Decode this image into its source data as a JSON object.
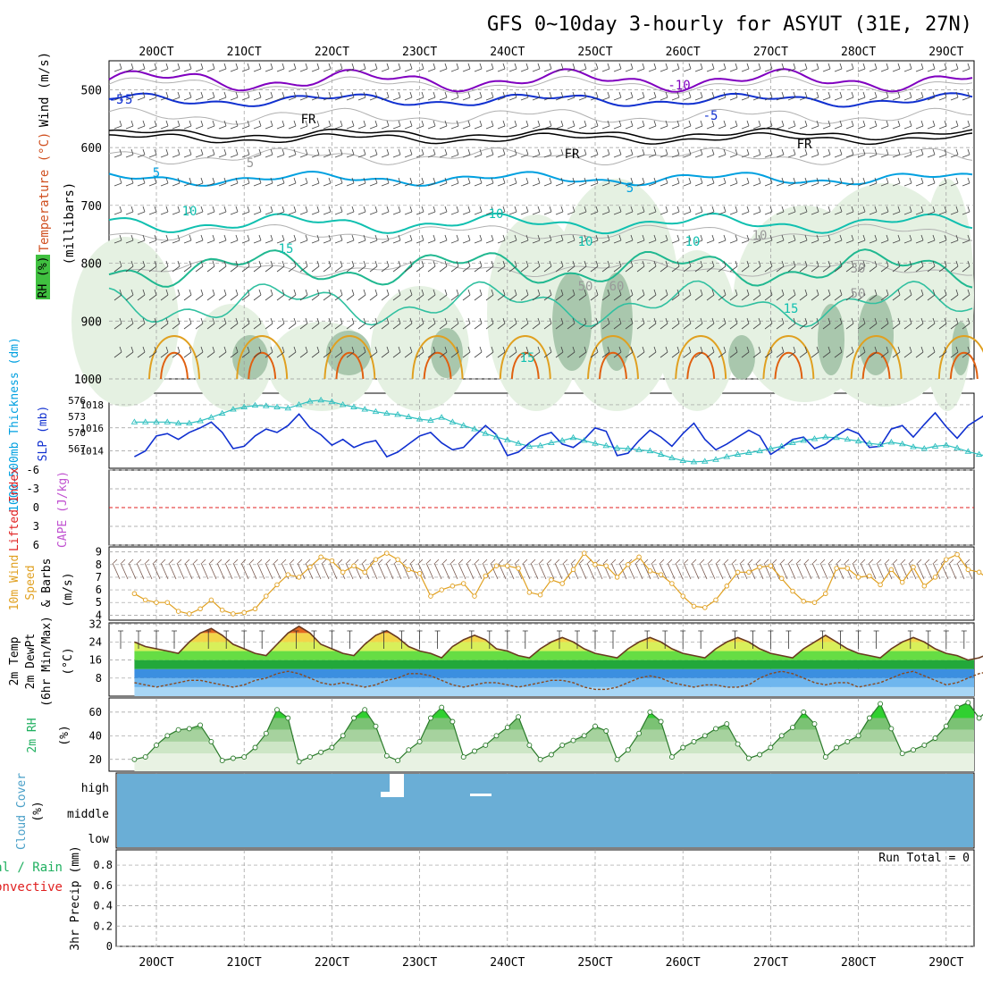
{
  "title": "GFS 0~10day 3-hourly for ASYUT (31E, 27N)",
  "dates": [
    "20OCT",
    "21OCT",
    "22OCT",
    "23OCT",
    "24OCT",
    "25OCT",
    "26OCT",
    "27OCT",
    "28OCT",
    "29OCT"
  ],
  "colors": {
    "purple": "#8000c0",
    "blue": "#1030d0",
    "lightblue": "#00a0e0",
    "teal": "#10c0b0",
    "green": "#20b060",
    "orange": "#e0a020",
    "darkorange": "#e06010",
    "cyan": "#30c0c0",
    "sky": "#6aaed6",
    "red": "#e02020",
    "rhgreen": "#40c040"
  },
  "panels": {
    "upper": {
      "label_wind": "Wind (m/s)",
      "label_temp": "Temperature (°C)",
      "label_rh": "RH (%)",
      "label_pressure": "(millibars)",
      "y_ticks": [
        "500",
        "600",
        "700",
        "800",
        "900",
        "1000"
      ],
      "contour_labels": [
        "-10",
        "-5",
        "-5",
        "-5",
        "FR",
        "FR",
        "FR",
        "5",
        "5",
        "5",
        "10",
        "10",
        "10",
        "15",
        "15",
        "15",
        "10",
        "10",
        "30",
        "50",
        "50",
        "60"
      ]
    },
    "slp": {
      "label_slp": "SLP (mb)",
      "label_thick": "1000-500mb Thickness (dm)",
      "left_ticks": [
        "576",
        "573",
        "570",
        "567"
      ],
      "right_ticks": [
        "1018",
        "1016",
        "1014"
      ]
    },
    "li": {
      "label_li": "Lifted Index",
      "label_cape": "CAPE (J/kg)",
      "ticks": [
        "-6",
        "-3",
        "0",
        "3",
        "6"
      ]
    },
    "wind10": {
      "label_a": "10m Wind",
      "label_b": "Speed",
      "label_c": "& Barbs",
      "unit": "(m/s)",
      "ticks": [
        "9",
        "8",
        "7",
        "6",
        "5",
        "4"
      ]
    },
    "temp2m": {
      "label_a": "2m Temp",
      "label_b": "2m DewPt",
      "label_c": "(6hr Min/Max)",
      "unit": "(°C)",
      "ticks": [
        "32",
        "24",
        "16",
        "8"
      ]
    },
    "rh2m": {
      "label": "2m RH",
      "unit": "(%)",
      "ticks": [
        "60",
        "40",
        "20"
      ]
    },
    "cloud": {
      "label": "Cloud Cover",
      "unit": "(%)",
      "ticks": [
        "high",
        "middle",
        "low"
      ]
    },
    "precip": {
      "label_a": "Total / Rain",
      "label_b": "Convective",
      "label_c": "3hr Precip (mm)",
      "run_total": "Run Total = 0",
      "ticks": [
        "0.8",
        "0.6",
        "0.4",
        "0.2",
        "0"
      ]
    }
  },
  "chart_data": [
    {
      "type": "line",
      "title": "SLP (mb) and 1000-500mb Thickness (dm)",
      "x": [
        "19OCT18",
        "19OCT21",
        "20OCT00",
        "20OCT03",
        "20OCT06",
        "20OCT09",
        "20OCT12",
        "20OCT15",
        "20OCT18",
        "20OCT21",
        "21OCT00",
        "21OCT03",
        "21OCT06",
        "21OCT09",
        "21OCT12",
        "21OCT15",
        "21OCT18",
        "21OCT21",
        "22OCT00",
        "22OCT03",
        "22OCT06",
        "22OCT09",
        "22OCT12",
        "22OCT15",
        "22OCT18",
        "22OCT21",
        "23OCT00",
        "23OCT03",
        "23OCT06",
        "23OCT09",
        "23OCT12",
        "23OCT15",
        "23OCT18",
        "23OCT21",
        "24OCT00",
        "24OCT03",
        "24OCT06",
        "24OCT09",
        "24OCT12",
        "24OCT15",
        "24OCT18",
        "24OCT21",
        "25OCT00",
        "25OCT03",
        "25OCT06",
        "25OCT09",
        "25OCT12",
        "25OCT15",
        "25OCT18",
        "25OCT21",
        "26OCT00",
        "26OCT03",
        "26OCT06",
        "26OCT09",
        "26OCT12",
        "26OCT15",
        "26OCT18",
        "26OCT21",
        "27OCT00",
        "27OCT03",
        "27OCT06",
        "27OCT09",
        "27OCT12",
        "27OCT15",
        "27OCT18",
        "27OCT21",
        "28OCT00",
        "28OCT03",
        "28OCT06",
        "28OCT09",
        "28OCT12",
        "28OCT15",
        "28OCT18",
        "28OCT21",
        "29OCT00",
        "29OCT03",
        "29OCT06",
        "29OCT09",
        "29OCT12"
      ],
      "series": [
        {
          "name": "SLP (mb)",
          "axis": "right",
          "values": [
            1013.5,
            1014.0,
            1015.3,
            1015.5,
            1015.0,
            1015.6,
            1016.0,
            1016.5,
            1015.6,
            1014.2,
            1014.4,
            1015.3,
            1015.9,
            1015.6,
            1016.2,
            1017.2,
            1016.0,
            1015.4,
            1014.5,
            1015.0,
            1014.3,
            1014.7,
            1014.9,
            1013.5,
            1013.9,
            1014.6,
            1015.3,
            1015.6,
            1014.7,
            1014.1,
            1014.3,
            1015.3,
            1016.2,
            1015.4,
            1013.6,
            1013.9,
            1014.7,
            1015.3,
            1015.6,
            1014.6,
            1014.3,
            1015.0,
            1016.0,
            1015.7,
            1013.6,
            1013.8,
            1014.9,
            1015.8,
            1015.2,
            1014.4,
            1015.5,
            1016.4,
            1015.0,
            1014.1,
            1014.6,
            1015.2,
            1015.8,
            1015.3,
            1013.7,
            1014.3,
            1015.0,
            1015.2,
            1014.2,
            1014.6,
            1015.3,
            1015.9,
            1015.5,
            1014.3,
            1014.4,
            1015.9,
            1016.2,
            1015.2,
            1016.3,
            1017.3,
            1016.1,
            1015.1,
            1016.2,
            1016.8,
            1017.4
          ]
        },
        {
          "name": "1000-500mb Thickness (dm)",
          "axis": "left",
          "values": [
            573.0,
            573.0,
            573.0,
            573.0,
            572.8,
            572.8,
            573.2,
            573.8,
            574.5,
            575.2,
            575.6,
            575.9,
            575.8,
            575.6,
            575.4,
            576.0,
            576.6,
            576.8,
            576.5,
            576.0,
            575.6,
            575.2,
            574.8,
            574.5,
            574.3,
            573.9,
            573.5,
            573.3,
            573.8,
            573.0,
            572.4,
            571.8,
            571.0,
            570.4,
            569.9,
            569.3,
            568.8,
            568.9,
            569.4,
            569.8,
            570.3,
            569.8,
            569.3,
            568.9,
            568.5,
            568.4,
            568.2,
            568.0,
            567.4,
            566.8,
            566.3,
            566.1,
            566.2,
            566.5,
            567.0,
            567.4,
            567.7,
            568.0,
            568.4,
            568.8,
            569.4,
            569.8,
            570.1,
            570.4,
            570.3,
            570.0,
            569.7,
            569.3,
            569.1,
            569.5,
            569.2,
            568.7,
            568.4,
            568.8,
            569.0,
            568.5,
            567.9,
            567.4,
            567.0
          ]
        }
      ],
      "ylim_left": [
        565,
        578
      ],
      "ylim_right": [
        1012.5,
        1019.0
      ]
    },
    {
      "type": "line",
      "title": "Lifted Index / CAPE",
      "series": [
        {
          "name": "Lifted Index",
          "values": [
            0,
            0,
            0,
            0,
            0,
            0,
            0,
            0,
            0,
            0
          ]
        }
      ],
      "ylim": [
        6,
        -6
      ]
    },
    {
      "type": "line",
      "title": "10m Wind Speed (m/s)",
      "x": [
        "19OCT18",
        "19OCT21",
        "20OCT00",
        "20OCT03",
        "20OCT06",
        "20OCT09",
        "20OCT12",
        "20OCT15",
        "20OCT18",
        "20OCT21",
        "21OCT00",
        "21OCT03",
        "21OCT06",
        "21OCT09",
        "21OCT12",
        "21OCT15",
        "21OCT18",
        "21OCT21",
        "22OCT00",
        "22OCT03",
        "22OCT06",
        "22OCT09",
        "22OCT12",
        "22OCT15",
        "22OCT18",
        "22OCT21",
        "23OCT00",
        "23OCT03",
        "23OCT06",
        "23OCT09",
        "23OCT12",
        "23OCT15",
        "23OCT18",
        "23OCT21",
        "24OCT00",
        "24OCT03",
        "24OCT06",
        "24OCT09",
        "24OCT12",
        "24OCT15",
        "24OCT18",
        "24OCT21",
        "25OCT00",
        "25OCT03",
        "25OCT06",
        "25OCT09",
        "25OCT12",
        "25OCT15",
        "25OCT18",
        "25OCT21",
        "26OCT00",
        "26OCT03",
        "26OCT06",
        "26OCT09",
        "26OCT12",
        "26OCT15",
        "26OCT18",
        "26OCT21",
        "27OCT00",
        "27OCT03",
        "27OCT06",
        "27OCT09",
        "27OCT12",
        "27OCT15",
        "27OCT18",
        "27OCT21",
        "28OCT00",
        "28OCT03",
        "28OCT06",
        "28OCT09",
        "28OCT12",
        "28OCT15",
        "28OCT18",
        "28OCT21",
        "29OCT00",
        "29OCT03",
        "29OCT06",
        "29OCT09",
        "29OCT12"
      ],
      "series": [
        {
          "name": "Speed",
          "values": [
            5.7,
            5.2,
            5.0,
            5.0,
            4.3,
            4.1,
            4.5,
            5.2,
            4.4,
            4.1,
            4.2,
            4.5,
            5.5,
            6.4,
            7.2,
            7.0,
            7.8,
            8.6,
            8.3,
            7.4,
            7.9,
            7.4,
            8.4,
            8.9,
            8.4,
            7.6,
            7.3,
            5.5,
            6.0,
            6.3,
            6.5,
            5.5,
            7.1,
            7.9,
            7.9,
            7.7,
            5.8,
            5.6,
            6.8,
            6.5,
            7.6,
            8.9,
            8.0,
            7.9,
            7.0,
            8.0,
            8.6,
            7.5,
            7.2,
            6.5,
            5.5,
            4.7,
            4.6,
            5.2,
            6.3,
            7.4,
            7.4,
            7.8,
            7.9,
            6.9,
            5.9,
            5.1,
            5.0,
            5.7,
            7.7,
            7.7,
            7.0,
            7.1,
            6.4,
            7.6,
            6.6,
            7.8,
            6.3,
            7.0,
            8.4,
            8.8,
            7.6,
            7.4,
            6.8
          ]
        }
      ],
      "ylim": [
        3.6,
        9.4
      ]
    },
    {
      "type": "area",
      "title": "2m Temp / 2m DewPt (°C)",
      "x": [
        "19OCT18",
        "19OCT21",
        "20OCT00",
        "20OCT03",
        "20OCT06",
        "20OCT09",
        "20OCT12",
        "20OCT15",
        "20OCT18",
        "20OCT21",
        "21OCT00",
        "21OCT03",
        "21OCT06",
        "21OCT09",
        "21OCT12",
        "21OCT15",
        "21OCT18",
        "21OCT21",
        "22OCT00",
        "22OCT03",
        "22OCT06",
        "22OCT09",
        "22OCT12",
        "22OCT15",
        "22OCT18",
        "22OCT21",
        "23OCT00",
        "23OCT03",
        "23OCT06",
        "23OCT09",
        "23OCT12",
        "23OCT15",
        "23OCT18",
        "23OCT21",
        "24OCT00",
        "24OCT03",
        "24OCT06",
        "24OCT09",
        "24OCT12",
        "24OCT15",
        "24OCT18",
        "24OCT21",
        "25OCT00",
        "25OCT03",
        "25OCT06",
        "25OCT09",
        "25OCT12",
        "25OCT15",
        "25OCT18",
        "25OCT21",
        "26OCT00",
        "26OCT03",
        "26OCT06",
        "26OCT09",
        "26OCT12",
        "26OCT15",
        "26OCT18",
        "26OCT21",
        "27OCT00",
        "27OCT03",
        "27OCT06",
        "27OCT09",
        "27OCT12",
        "27OCT15",
        "27OCT18",
        "27OCT21",
        "28OCT00",
        "28OCT03",
        "28OCT06",
        "28OCT09",
        "28OCT12",
        "28OCT15",
        "28OCT18",
        "28OCT21",
        "29OCT00",
        "29OCT03",
        "29OCT06",
        "29OCT09",
        "29OCT12"
      ],
      "series": [
        {
          "name": "2m Temp",
          "values": [
            24,
            22,
            21,
            20,
            19,
            24,
            28,
            30,
            27,
            23,
            21,
            19,
            18,
            23,
            28,
            31,
            28,
            23,
            21,
            19,
            18,
            23,
            27,
            29,
            26,
            22,
            20,
            19,
            17,
            22,
            25,
            27,
            25,
            21,
            20,
            18,
            17,
            21,
            24,
            26,
            24,
            21,
            19,
            18,
            17,
            21,
            24,
            26,
            24,
            21,
            19,
            18,
            17,
            21,
            24,
            26,
            24,
            21,
            19,
            18,
            17,
            21,
            24,
            27,
            24,
            21,
            19,
            18,
            17,
            21,
            24,
            26,
            24,
            21,
            19,
            18,
            16,
            17,
            19
          ]
        },
        {
          "name": "2m DewPt",
          "values": [
            6,
            5,
            4,
            5,
            6,
            7,
            7,
            6,
            5,
            4,
            5,
            7,
            8,
            10,
            11,
            10,
            8,
            6,
            5,
            6,
            5,
            4,
            5,
            7,
            8,
            10,
            10,
            9,
            7,
            5,
            4,
            5,
            6,
            6,
            5,
            4,
            5,
            6,
            7,
            7,
            6,
            4,
            3,
            3,
            4,
            6,
            8,
            9,
            8,
            6,
            5,
            4,
            5,
            5,
            4,
            4,
            5,
            8,
            10,
            11,
            10,
            8,
            6,
            5,
            6,
            6,
            4,
            5,
            6,
            8,
            10,
            11,
            9,
            7,
            5,
            6,
            8,
            10,
            11
          ]
        }
      ],
      "ylim": [
        0,
        32
      ]
    },
    {
      "type": "area",
      "title": "2m RH (%)",
      "x": [
        "19OCT18",
        "19OCT21",
        "20OCT00",
        "20OCT03",
        "20OCT06",
        "20OCT09",
        "20OCT12",
        "20OCT15",
        "20OCT18",
        "20OCT21",
        "21OCT00",
        "21OCT03",
        "21OCT06",
        "21OCT09",
        "21OCT12",
        "21OCT15",
        "21OCT18",
        "21OCT21",
        "22OCT00",
        "22OCT03",
        "22OCT06",
        "22OCT09",
        "22OCT12",
        "22OCT15",
        "22OCT18",
        "22OCT21",
        "23OCT00",
        "23OCT03",
        "23OCT06",
        "23OCT09",
        "23OCT12",
        "23OCT15",
        "23OCT18",
        "23OCT21",
        "24OCT00",
        "24OCT03",
        "24OCT06",
        "24OCT09",
        "24OCT12",
        "24OCT15",
        "24OCT18",
        "24OCT21",
        "25OCT00",
        "25OCT03",
        "25OCT06",
        "25OCT09",
        "25OCT12",
        "25OCT15",
        "25OCT18",
        "25OCT21",
        "26OCT00",
        "26OCT03",
        "26OCT06",
        "26OCT09",
        "26OCT12",
        "26OCT15",
        "26OCT18",
        "26OCT21",
        "27OCT00",
        "27OCT03",
        "27OCT06",
        "27OCT09",
        "27OCT12",
        "27OCT15",
        "27OCT18",
        "27OCT21",
        "28OCT00",
        "28OCT03",
        "28OCT06",
        "28OCT09",
        "28OCT12",
        "28OCT15",
        "28OCT18",
        "28OCT21",
        "29OCT00",
        "29OCT03",
        "29OCT06",
        "29OCT09",
        "29OCT12"
      ],
      "series": [
        {
          "name": "2m RH",
          "values": [
            20,
            22,
            32,
            40,
            45,
            46,
            49,
            35,
            19,
            21,
            22,
            30,
            42,
            62,
            55,
            18,
            22,
            26,
            30,
            40,
            55,
            62,
            48,
            23,
            19,
            28,
            35,
            55,
            64,
            52,
            22,
            27,
            32,
            40,
            47,
            56,
            32,
            20,
            24,
            32,
            36,
            40,
            48,
            44,
            20,
            28,
            42,
            60,
            52,
            22,
            30,
            35,
            40,
            46,
            50,
            33,
            21,
            24,
            30,
            40,
            47,
            60,
            50,
            22,
            30,
            35,
            40,
            55,
            67,
            46,
            25,
            28,
            32,
            38,
            48,
            64,
            68,
            55,
            63
          ]
        }
      ],
      "ylim": [
        10,
        70
      ]
    },
    {
      "type": "area",
      "title": "Cloud Cover (%)",
      "series": [
        {
          "name": "high",
          "values": [
            100,
            100,
            100,
            100,
            100,
            100,
            100,
            100,
            100,
            100
          ]
        },
        {
          "name": "middle",
          "values": [
            100,
            100,
            100,
            100,
            100,
            100,
            100,
            100,
            100,
            100
          ]
        },
        {
          "name": "low",
          "values": [
            100,
            100,
            100,
            100,
            100,
            100,
            100,
            100,
            100,
            100
          ]
        }
      ]
    },
    {
      "type": "bar",
      "title": "3hr Precip (mm)",
      "series": [
        {
          "name": "Total / Rain",
          "values": [
            0,
            0,
            0,
            0,
            0,
            0,
            0,
            0,
            0,
            0
          ]
        }
      ],
      "ylim": [
        0,
        0.95
      ]
    }
  ]
}
